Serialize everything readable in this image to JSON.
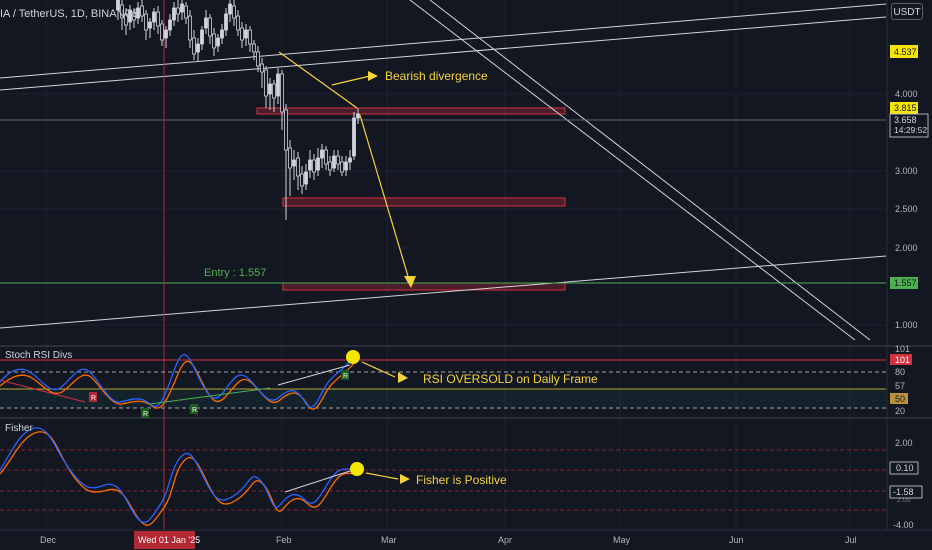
{
  "header": {
    "symbol": "IA / TetherUS, 1D, BINANCE",
    "currency": "USDT"
  },
  "price_axis": {
    "ticks": [
      "4.000",
      "3.000",
      "2.500",
      "2.000",
      "1.000"
    ],
    "badges": {
      "upper": "4.537",
      "mid": "3.815",
      "current": "3.658",
      "countdown": "14:29:52",
      "entry": "1.557"
    }
  },
  "annotations": {
    "bearish": "Bearish divergence",
    "entry": "Entry : 1.557",
    "rsi_note": "RSI OVERSOLD on Daily Frame",
    "fisher_note": "Fisher is Positive"
  },
  "rsi_pane": {
    "title": "Stoch RSI Divs",
    "ticks": [
      "101",
      "80",
      "57",
      "20"
    ],
    "badges": {
      "upper": "101",
      "value": "50"
    },
    "signals": [
      "R",
      "R",
      "R",
      "R"
    ]
  },
  "fisher_pane": {
    "title": "Fisher",
    "ticks": [
      "2.00",
      "-4.00",
      "2.00"
    ],
    "badges": {
      "value": "0.10",
      "trigger": "-1.58"
    }
  },
  "time_axis": {
    "labels": [
      "Dec",
      "Feb",
      "Mar",
      "Apr",
      "May",
      "Jun",
      "Jul"
    ],
    "cursor_label": "Wed 01 Jan '25"
  },
  "colors": {
    "background": "#131722",
    "up": "#d1d4dc",
    "accent_yellow": "#f5d33a",
    "entry_green": "#4caf50",
    "zone_red": "#b22833",
    "rsi_blue": "#2962ff",
    "rsi_orange": "#ff6d00"
  }
}
